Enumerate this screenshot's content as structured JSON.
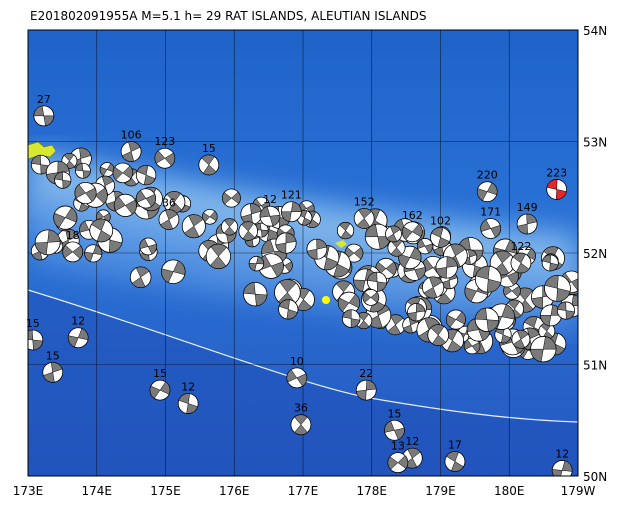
{
  "title": "E201802091955A M=5.1 h= 29 RAT ISLANDS, ALEUTIAN ISLANDS",
  "lat_labels": [
    "54N",
    "53N",
    "52N",
    "51N",
    "50N"
  ],
  "lon_labels": [
    "173E",
    "174E",
    "175E",
    "176E",
    "177E",
    "178E",
    "179E",
    "180E",
    "179W"
  ],
  "mechanism_color": "#7a7a7a",
  "events": [
    {
      "label": "27",
      "lon": 173.23,
      "lat": 53.23
    },
    {
      "label": "106",
      "lon": 174.5,
      "lat": 52.91
    },
    {
      "label": "123",
      "lon": 174.99,
      "lat": 52.85
    },
    {
      "label": "15",
      "lon": 175.63,
      "lat": 52.79
    },
    {
      "label": "220",
      "lon": 179.68,
      "lat": 52.55
    },
    {
      "label": "223",
      "lon": 180.69,
      "lat": 52.57,
      "color": "#e8262a"
    },
    {
      "label": "149",
      "lon": 180.26,
      "lat": 52.26
    },
    {
      "label": "171",
      "lon": 179.73,
      "lat": 52.22
    },
    {
      "label": "152",
      "lon": 177.89,
      "lat": 52.31
    },
    {
      "label": "162",
      "lon": 178.59,
      "lat": 52.19
    },
    {
      "label": "102",
      "lon": 179.0,
      "lat": 52.14
    },
    {
      "label": "121",
      "lon": 176.83,
      "lat": 52.37
    },
    {
      "label": "12",
      "lon": 176.52,
      "lat": 52.33
    },
    {
      "label": "36",
      "lon": 175.05,
      "lat": 52.3
    },
    {
      "label": "18",
      "lon": 173.65,
      "lat": 52.01
    },
    {
      "label": "122",
      "lon": 180.17,
      "lat": 51.91
    },
    {
      "label": "12",
      "lon": 173.73,
      "lat": 51.24
    },
    {
      "label": "15",
      "lon": 173.07,
      "lat": 51.22
    },
    {
      "label": "15",
      "lon": 173.36,
      "lat": 50.93
    },
    {
      "label": "10",
      "lon": 176.91,
      "lat": 50.88
    },
    {
      "label": "36",
      "lon": 176.97,
      "lat": 50.46
    },
    {
      "label": "15",
      "lon": 174.92,
      "lat": 50.77
    },
    {
      "label": "12",
      "lon": 175.33,
      "lat": 50.65
    },
    {
      "label": "22",
      "lon": 177.92,
      "lat": 50.77
    },
    {
      "label": "15",
      "lon": 178.33,
      "lat": 50.41
    },
    {
      "label": "12",
      "lon": 178.59,
      "lat": 50.16
    },
    {
      "label": "13",
      "lon": 178.38,
      "lat": 50.12
    },
    {
      "label": "17",
      "lon": 179.21,
      "lat": 50.13
    },
    {
      "label": "12",
      "lon": 180.77,
      "lat": 50.05
    }
  ]
}
